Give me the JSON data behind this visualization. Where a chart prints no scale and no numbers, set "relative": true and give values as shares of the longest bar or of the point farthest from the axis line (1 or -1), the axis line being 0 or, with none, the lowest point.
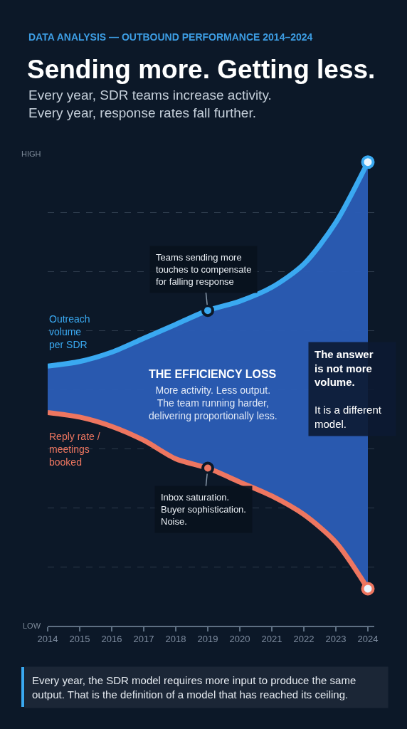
{
  "chart_data": {
    "type": "line",
    "title": "Sending more. Getting less.",
    "subtitle": "Every year, SDR teams increase activity.\nEvery year, response rates fall further.",
    "x": [
      2014,
      2015,
      2016,
      2017,
      2018,
      2019,
      2020,
      2021,
      2022,
      2023,
      2024
    ],
    "xlim": [
      2014,
      2024.2
    ],
    "xticks": [
      2014,
      2015,
      2016,
      2017,
      2018,
      2019,
      2020,
      2021,
      2022,
      2023,
      2024
    ],
    "relative": true,
    "grid": "y",
    "line_style": "solid",
    "series": [
      {
        "name": "Outreach\nvolume\nper SDR",
        "color": "#3aa9f1",
        "values": [
          0.56,
          0.57,
          0.59,
          0.62,
          0.65,
          0.68,
          0.7,
          0.73,
          0.78,
          0.87,
          1
        ],
        "lower": [
          0.46,
          0.45,
          0.43,
          0.4,
          0.36,
          0.34,
          0.31,
          0.28,
          0.24,
          0.18,
          0.08
        ],
        "upper": [
          0.56,
          0.57,
          0.59,
          0.62,
          0.65,
          0.68,
          0.7,
          0.73,
          0.78,
          0.87,
          1
        ]
      },
      {
        "name": "Reply rate /\nmeetings\nbooked",
        "color": "#ee7660",
        "values": [
          0.46,
          0.45,
          0.43,
          0.4,
          0.36,
          0.34,
          0.31,
          0.28,
          0.24,
          0.18,
          0.08
        ]
      }
    ],
    "annotations": [
      "DATA ANALYSIS — OUTBOUND PERFORMANCE 2014–2024",
      "HIGH",
      "LOW",
      {
        "text": "Teams sending more\ntouches to compensate\nfor falling response",
        "x": 2019,
        "y": 0.68
      },
      {
        "text": "Inbox saturation.\nBuyer sophistication.\nNoise.",
        "x": 2019,
        "y": 0.34
      },
      "THE EFFICIENCY LOSS",
      "More activity. Less output.\nThe team running harder,\ndelivering proportionally less.",
      "The answer\nis not more\nvolume.\n\nIt is a different\nmodel.",
      "Every year, the SDR model requires more input to produce the same\noutput. That is the definition of a model that has reached its ceiling."
    ]
  }
}
